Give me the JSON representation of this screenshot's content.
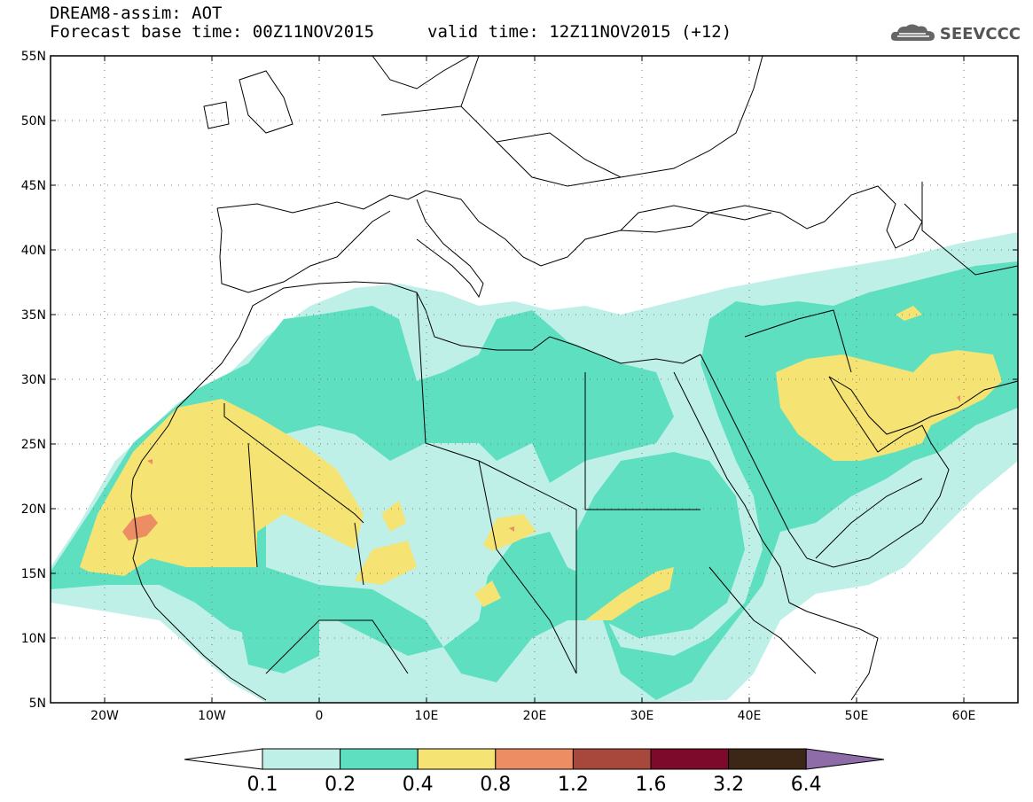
{
  "header": {
    "line1": "DREAM8-assim: AOT",
    "base_time": "Forecast base time: 00Z11NOV2015",
    "valid_time": "valid time: 12Z11NOV2015 (+12)",
    "logo_text": "SEEVCCC"
  },
  "map": {
    "lat_labels": [
      "55N",
      "50N",
      "45N",
      "40N",
      "35N",
      "30N",
      "25N",
      "20N",
      "15N",
      "10N",
      "5N"
    ],
    "lon_labels": [
      "20W",
      "10W",
      "0",
      "10E",
      "20E",
      "30E",
      "40E",
      "50E",
      "60E"
    ],
    "lon_range": [
      -25,
      65
    ],
    "lat_range": [
      5,
      55
    ]
  },
  "legend": {
    "colors": [
      "#bff0e8",
      "#5ddfc0",
      "#f5e473",
      "#ec8d64",
      "#a8473c",
      "#7d0a2a",
      "#3c2616",
      "#8e6ca8"
    ],
    "labels": [
      "0.1",
      "0.2",
      "0.4",
      "0.8",
      "1.2",
      "1.6",
      "3.2",
      "6.4"
    ]
  }
}
